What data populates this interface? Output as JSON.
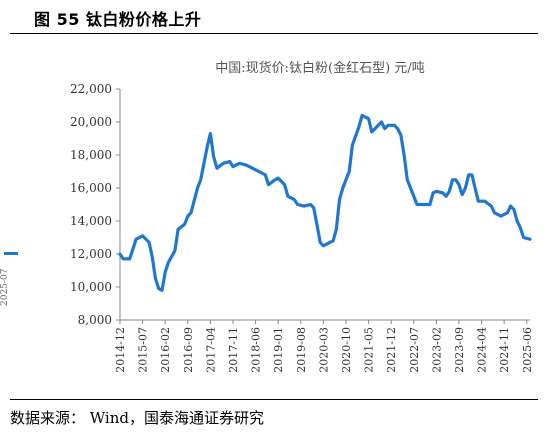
{
  "figure": {
    "title": "图 55  钛白粉价格上升",
    "source": "数据来源：  Wind，国泰海通证券研究",
    "edge_text": "2025-07"
  },
  "colors": {
    "line": "#1f77d2",
    "axis": "#888888",
    "text": "#333333"
  },
  "chart_data": {
    "type": "line",
    "title": "中国:现货价:钛白粉(金红石型) 元/吨",
    "xlabel": "",
    "ylabel": "",
    "ylim": [
      8000,
      22000
    ],
    "yticks": [
      "8,000",
      "10,000",
      "12,000",
      "14,000",
      "16,000",
      "18,000",
      "20,000",
      "22,000"
    ],
    "ytick_values": [
      8000,
      10000,
      12000,
      14000,
      16000,
      18000,
      20000,
      22000
    ],
    "xticks": [
      "2014-12",
      "2015-07",
      "2016-02",
      "2016-09",
      "2017-04",
      "2017-11",
      "2018-06",
      "2019-01",
      "2019-08",
      "2020-03",
      "2020-10",
      "2021-05",
      "2021-12",
      "2022-07",
      "2023-02",
      "2023-09",
      "2024-04",
      "2024-11",
      "2025-06"
    ],
    "grid": false,
    "legend": "none",
    "series": [
      {
        "name": "",
        "points": [
          [
            "2014-12",
            12000
          ],
          [
            "2015-01",
            11700
          ],
          [
            "2015-03",
            11700
          ],
          [
            "2015-05",
            12900
          ],
          [
            "2015-07",
            13100
          ],
          [
            "2015-09",
            12700
          ],
          [
            "2015-10",
            11800
          ],
          [
            "2015-11",
            10500
          ],
          [
            "2015-12",
            9900
          ],
          [
            "2016-01",
            9800
          ],
          [
            "2016-02",
            10900
          ],
          [
            "2016-03",
            11500
          ],
          [
            "2016-05",
            12200
          ],
          [
            "2016-06",
            13500
          ],
          [
            "2016-08",
            13800
          ],
          [
            "2016-09",
            14300
          ],
          [
            "2016-10",
            14500
          ],
          [
            "2016-12",
            16000
          ],
          [
            "2017-01",
            16500
          ],
          [
            "2017-03",
            18500
          ],
          [
            "2017-04",
            19300
          ],
          [
            "2017-05",
            17900
          ],
          [
            "2017-06",
            17200
          ],
          [
            "2017-08",
            17500
          ],
          [
            "2017-10",
            17600
          ],
          [
            "2017-11",
            17300
          ],
          [
            "2018-01",
            17500
          ],
          [
            "2018-03",
            17400
          ],
          [
            "2018-05",
            17200
          ],
          [
            "2018-07",
            17000
          ],
          [
            "2018-09",
            16800
          ],
          [
            "2018-10",
            16200
          ],
          [
            "2018-12",
            16500
          ],
          [
            "2019-01",
            16600
          ],
          [
            "2019-03",
            16200
          ],
          [
            "2019-04",
            15500
          ],
          [
            "2019-06",
            15300
          ],
          [
            "2019-07",
            15000
          ],
          [
            "2019-09",
            14900
          ],
          [
            "2019-11",
            15000
          ],
          [
            "2019-12",
            14800
          ],
          [
            "2020-01",
            13800
          ],
          [
            "2020-02",
            12700
          ],
          [
            "2020-03",
            12500
          ],
          [
            "2020-05",
            12700
          ],
          [
            "2020-06",
            12800
          ],
          [
            "2020-07",
            13500
          ],
          [
            "2020-08",
            15300
          ],
          [
            "2020-09",
            16000
          ],
          [
            "2020-11",
            17000
          ],
          [
            "2020-12",
            18600
          ],
          [
            "2021-02",
            19700
          ],
          [
            "2021-03",
            20400
          ],
          [
            "2021-05",
            20200
          ],
          [
            "2021-06",
            19400
          ],
          [
            "2021-08",
            19800
          ],
          [
            "2021-09",
            20000
          ],
          [
            "2021-10",
            19600
          ],
          [
            "2021-11",
            19800
          ],
          [
            "2022-01",
            19800
          ],
          [
            "2022-02",
            19600
          ],
          [
            "2022-03",
            19200
          ],
          [
            "2022-04",
            18000
          ],
          [
            "2022-05",
            16500
          ],
          [
            "2022-07",
            15500
          ],
          [
            "2022-08",
            15000
          ],
          [
            "2022-10",
            15000
          ],
          [
            "2022-12",
            15000
          ],
          [
            "2023-01",
            15700
          ],
          [
            "2023-02",
            15800
          ],
          [
            "2023-04",
            15700
          ],
          [
            "2023-05",
            15500
          ],
          [
            "2023-06",
            15800
          ],
          [
            "2023-07",
            16500
          ],
          [
            "2023-08",
            16500
          ],
          [
            "2023-09",
            16200
          ],
          [
            "2023-10",
            15600
          ],
          [
            "2023-11",
            16000
          ],
          [
            "2023-12",
            16800
          ],
          [
            "2024-01",
            16800
          ],
          [
            "2024-02",
            16000
          ],
          [
            "2024-03",
            15200
          ],
          [
            "2024-05",
            15200
          ],
          [
            "2024-07",
            14900
          ],
          [
            "2024-08",
            14500
          ],
          [
            "2024-10",
            14300
          ],
          [
            "2024-12",
            14500
          ],
          [
            "2025-01",
            14900
          ],
          [
            "2025-02",
            14700
          ],
          [
            "2025-03",
            14000
          ],
          [
            "2025-04",
            13600
          ],
          [
            "2025-05",
            13000
          ],
          [
            "2025-07",
            12900
          ]
        ]
      }
    ]
  }
}
